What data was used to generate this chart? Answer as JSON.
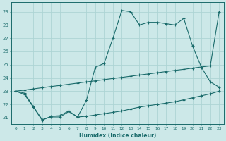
{
  "xlabel": "Humidex (Indice chaleur)",
  "xlim": [
    -0.5,
    23.5
  ],
  "ylim": [
    20.5,
    29.7
  ],
  "xticks": [
    0,
    1,
    2,
    3,
    4,
    5,
    6,
    7,
    8,
    9,
    10,
    11,
    12,
    13,
    14,
    15,
    16,
    17,
    18,
    19,
    20,
    21,
    22,
    23
  ],
  "yticks": [
    21,
    22,
    23,
    24,
    25,
    26,
    27,
    28,
    29
  ],
  "bg_color": "#cce8e8",
  "grid_color": "#add4d4",
  "line_color": "#1a6b6b",
  "line1_x": [
    0,
    1,
    2,
    3,
    4,
    5,
    6,
    7,
    8,
    9,
    10,
    11,
    12,
    13,
    14,
    15,
    16,
    17,
    18,
    19,
    20,
    21,
    22,
    23
  ],
  "line1_y": [
    23.0,
    22.75,
    21.8,
    20.8,
    21.1,
    21.15,
    21.5,
    21.05,
    22.3,
    24.8,
    25.1,
    27.0,
    29.1,
    29.0,
    28.0,
    28.2,
    28.2,
    28.1,
    28.0,
    28.5,
    26.4,
    24.8,
    23.7,
    23.3
  ],
  "line2_x": [
    0,
    1,
    2,
    3,
    4,
    5,
    6,
    7,
    8,
    9,
    10,
    11,
    12,
    13,
    14,
    15,
    16,
    17,
    18,
    19,
    20,
    21,
    22,
    23
  ],
  "line2_y": [
    23.0,
    23.08,
    23.17,
    23.26,
    23.35,
    23.43,
    23.52,
    23.61,
    23.7,
    23.78,
    23.87,
    23.96,
    24.04,
    24.13,
    24.22,
    24.3,
    24.39,
    24.48,
    24.57,
    24.65,
    24.74,
    24.83,
    24.91,
    29.0
  ],
  "line3_x": [
    0,
    1,
    2,
    3,
    4,
    5,
    6,
    7,
    8,
    9,
    10,
    11,
    12,
    13,
    14,
    15,
    16,
    17,
    18,
    19,
    20,
    21,
    22,
    23
  ],
  "line3_y": [
    23.0,
    22.85,
    21.85,
    20.85,
    21.05,
    21.05,
    21.45,
    21.05,
    21.1,
    21.2,
    21.3,
    21.4,
    21.5,
    21.65,
    21.8,
    21.9,
    22.0,
    22.1,
    22.2,
    22.35,
    22.5,
    22.65,
    22.8,
    23.0
  ]
}
